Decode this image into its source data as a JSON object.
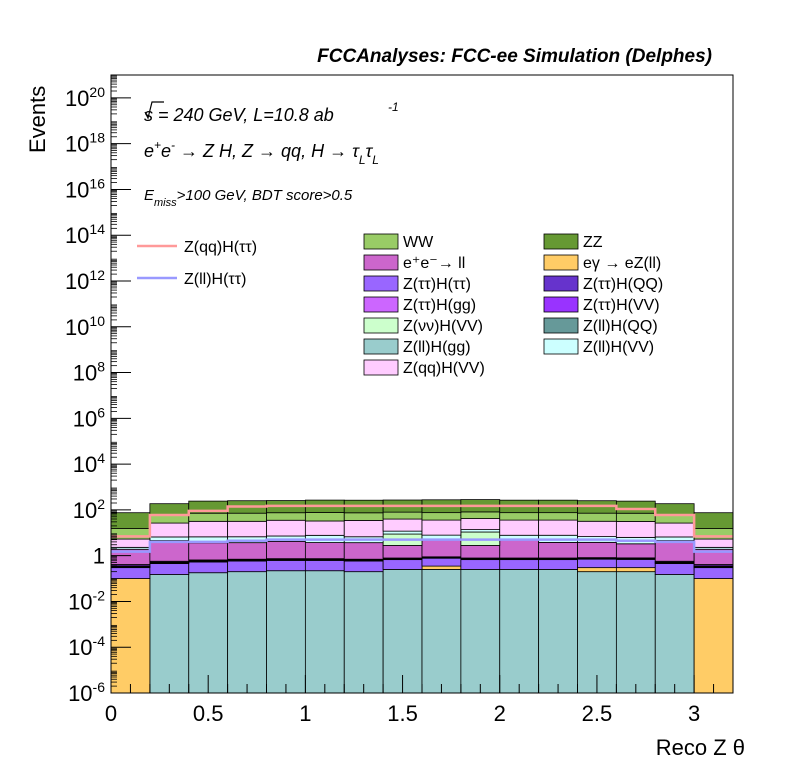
{
  "header": {
    "title": "FCCAnalyses: FCC-ee Simulation (Delphes)"
  },
  "annotations": {
    "line1": "√s = 240 GeV, L=10.8 ab",
    "line1_exp": "-1",
    "line2": "e⁺e⁻ → Z H, Z → qq, H → τ_L τ_L",
    "line3": "E_miss>100 GeV, BDT score>0.5"
  },
  "chart_data": {
    "type": "bar",
    "stacked": true,
    "xlabel": "Reco Z θ",
    "ylabel": "Events",
    "xlim": [
      0,
      3.2
    ],
    "ylim": [
      1e-06,
      1e+21
    ],
    "yscale": "log",
    "x_bin_edges": [
      0,
      0.2,
      0.4,
      0.6,
      0.8,
      1.0,
      1.2,
      1.4,
      1.6,
      1.8,
      2.0,
      2.2,
      2.4,
      2.6,
      2.8,
      3.0,
      3.2
    ],
    "x_ticks": [
      "0",
      "0.5",
      "1",
      "1.5",
      "2",
      "2.5",
      "3"
    ],
    "y_ticks": [
      "10^-6",
      "10^-4",
      "10^-2",
      "1",
      "10^2",
      "10^4",
      "10^6",
      "10^8",
      "10^10",
      "10^12",
      "10^14",
      "10^16",
      "10^18",
      "10^20"
    ],
    "legend_placement": "top-center",
    "series": [
      {
        "name": "Z(ll)H(gg)",
        "color": "#99cccc",
        "values": [
          1e-06,
          0.15,
          0.18,
          0.2,
          0.22,
          0.22,
          0.2,
          0.25,
          0.25,
          0.25,
          0.25,
          0.25,
          0.2,
          0.2,
          0.15,
          1e-06
        ]
      },
      {
        "name": "eγ → eZ(ll)",
        "color": "#ffcc66",
        "values": [
          0.1,
          1e-06,
          1e-06,
          1e-06,
          1e-06,
          1e-06,
          1e-06,
          1e-06,
          0.1,
          1e-06,
          1e-06,
          1e-06,
          0.1,
          0.1,
          1e-06,
          0.1
        ]
      },
      {
        "name": "Z(ττ)H(ττ)",
        "color": "#9966ff",
        "values": [
          0.2,
          0.3,
          0.35,
          0.38,
          0.4,
          0.4,
          0.38,
          0.42,
          0.42,
          0.42,
          0.42,
          0.42,
          0.4,
          0.38,
          0.3,
          0.2
        ]
      },
      {
        "name": "Z(ll)H(QQ)",
        "color": "#669999",
        "values": [
          0.02,
          0.02,
          0.02,
          0.02,
          0.02,
          0.02,
          0.02,
          0.02,
          0.02,
          0.02,
          0.02,
          0.02,
          0.02,
          0.02,
          0.02,
          0.02
        ]
      },
      {
        "name": "Z(ττ)H(QQ)",
        "color": "#6633cc",
        "values": [
          0.02,
          0.03,
          0.03,
          0.03,
          0.03,
          0.03,
          0.03,
          0.03,
          0.03,
          0.03,
          0.03,
          0.03,
          0.03,
          0.03,
          0.03,
          0.02
        ]
      },
      {
        "name": "Z(ττ)H(gg)",
        "color": "#cc66ff",
        "values": [
          0.02,
          0.02,
          0.02,
          0.02,
          0.02,
          0.02,
          0.02,
          0.02,
          0.02,
          0.02,
          0.02,
          0.02,
          0.02,
          0.02,
          0.02,
          0.02
        ]
      },
      {
        "name": "Z(ττ)H(VV)",
        "color": "#9933ff",
        "values": [
          0.05,
          0.05,
          0.05,
          0.05,
          0.05,
          0.05,
          0.05,
          0.05,
          0.05,
          0.05,
          0.05,
          0.05,
          0.05,
          0.05,
          0.05,
          0.05
        ]
      },
      {
        "name": "e⁺e⁻→ ll",
        "color": "#cc66cc",
        "values": [
          1.5,
          4,
          3,
          3,
          3.5,
          3,
          3,
          2,
          4,
          2,
          4,
          3,
          3,
          2.5,
          4,
          1.5
        ]
      },
      {
        "name": "Z(νν)H(VV)",
        "color": "#ccffcc",
        "values": [
          1e-06,
          1e-06,
          1e-06,
          1e-06,
          1e-06,
          1e-06,
          1e-06,
          6,
          1e-06,
          8,
          1e-06,
          1e-06,
          1e-06,
          1e-06,
          1e-06,
          1e-06
        ]
      },
      {
        "name": "Z(ll)H(VV)",
        "color": "#ccffff",
        "values": [
          0.4,
          2,
          3,
          3,
          3,
          4,
          3,
          3,
          3,
          3,
          3,
          4,
          3,
          3,
          2,
          0.4
        ]
      },
      {
        "name": "Z(qq)H(VV)",
        "color": "#ffccff",
        "values": [
          3,
          20,
          25,
          25,
          28,
          25,
          28,
          28,
          28,
          28,
          28,
          28,
          25,
          25,
          20,
          3
        ]
      },
      {
        "name": "WW",
        "color": "#99cc66",
        "values": [
          10,
          30,
          40,
          40,
          40,
          45,
          40,
          40,
          40,
          40,
          40,
          40,
          40,
          40,
          30,
          10
        ]
      },
      {
        "name": "ZZ",
        "color": "#669933",
        "values": [
          60,
          130,
          170,
          180,
          180,
          190,
          190,
          190,
          200,
          200,
          190,
          190,
          180,
          170,
          130,
          60
        ]
      }
    ],
    "overlays": [
      {
        "name": "Z(qq)H(ττ)",
        "color": "#ff9999",
        "values": [
          7,
          60,
          90,
          140,
          150,
          150,
          150,
          150,
          150,
          150,
          150,
          150,
          150,
          110,
          60,
          7
        ]
      },
      {
        "name": "Z(ll)H(ττ)",
        "color": "#9999ff",
        "values": [
          1.5,
          4,
          4,
          4.5,
          5,
          5,
          5,
          5,
          5,
          5,
          5,
          5,
          5,
          4.5,
          4,
          1.5
        ]
      }
    ]
  }
}
